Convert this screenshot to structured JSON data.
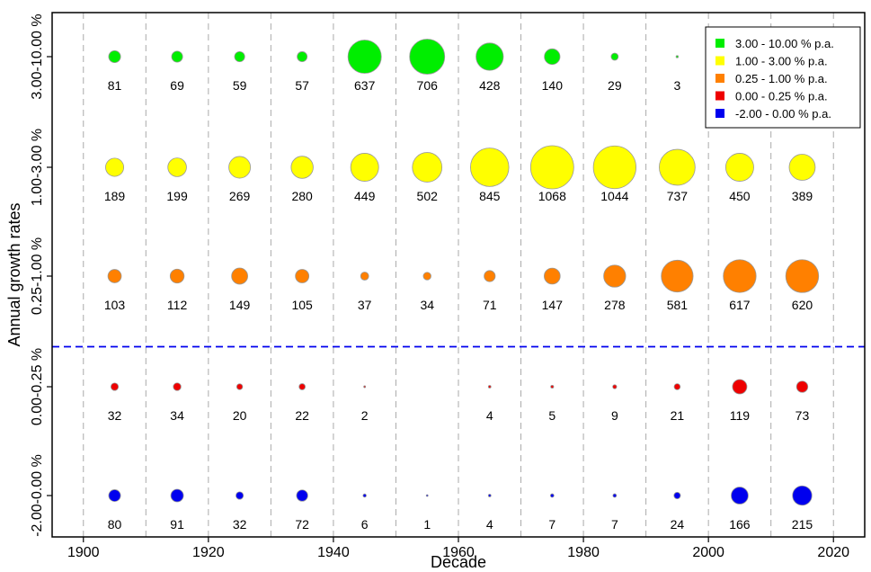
{
  "chart_data": {
    "type": "bubble",
    "xlabel": "Decade",
    "ylabel": "Annual growth rates",
    "xlim": [
      1895,
      2025
    ],
    "x_ticks": [
      1900,
      1920,
      1940,
      1960,
      1980,
      2000,
      2020
    ],
    "x_tick_labels": [
      "1900",
      "1920",
      "1940",
      "1960",
      "1980",
      "2000",
      "2020"
    ],
    "decades": [
      1905,
      1915,
      1925,
      1935,
      1945,
      1955,
      1965,
      1975,
      1985,
      1995,
      2005,
      2015
    ],
    "grid_x": true,
    "legend_position": "top-right",
    "series": [
      {
        "row_label": "3.00-10.00 %",
        "legend_label": "3.00 - 10.00 % p.a.",
        "color": "#00ee00",
        "values": [
          81,
          69,
          59,
          57,
          637,
          706,
          428,
          140,
          29,
          3,
          null,
          null
        ]
      },
      {
        "row_label": "1.00-3.00 %",
        "legend_label": "1.00 - 3.00 % p.a.",
        "color": "#ffff00",
        "values": [
          189,
          199,
          269,
          280,
          449,
          502,
          845,
          1068,
          1044,
          737,
          450,
          389
        ]
      },
      {
        "row_label": "0.25-1.00 %",
        "legend_label": "0.25 - 1.00 % p.a.",
        "color": "#ff8000",
        "values": [
          103,
          112,
          149,
          105,
          37,
          34,
          71,
          147,
          278,
          581,
          617,
          620
        ]
      },
      {
        "row_label": "0.00-0.25 %",
        "legend_label": "0.00 - 0.25 % p.a.",
        "color": "#ee0000",
        "values": [
          32,
          34,
          20,
          22,
          2,
          null,
          4,
          5,
          9,
          21,
          119,
          73
        ]
      },
      {
        "row_label": "-2.00-0.00 %",
        "legend_label": "-2.00 - 0.00 % p.a.",
        "color": "#0000ee",
        "values": [
          80,
          91,
          32,
          72,
          6,
          1,
          4,
          7,
          7,
          24,
          166,
          215
        ]
      }
    ],
    "divider": {
      "between_rows": [
        "0.25-1.00 %",
        "0.00-0.25 %"
      ],
      "style": "dashed",
      "color": "#0000ee"
    }
  }
}
